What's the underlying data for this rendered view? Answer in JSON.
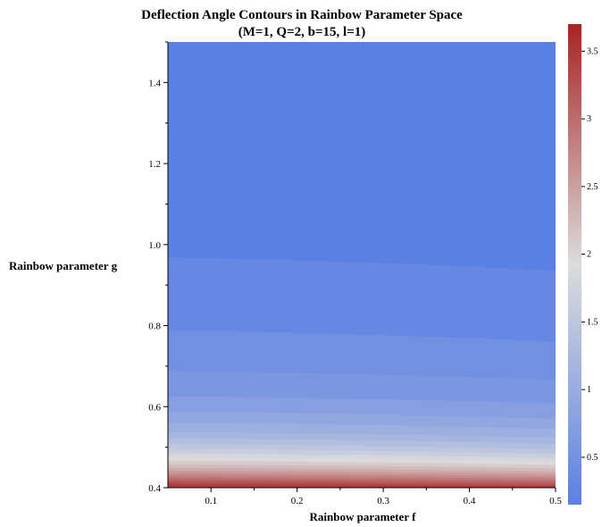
{
  "chart_data": {
    "type": "heatmap",
    "title": "Deflection Angle Contours in Rainbow Parameter Space",
    "subtitle": "(M=1, Q=2, b=15, l=1)",
    "xlabel": "Rainbow parameter f",
    "ylabel": "Rainbow parameter g",
    "xlim": [
      0.05,
      0.5
    ],
    "ylim": [
      0.4,
      1.5
    ],
    "xticks": [
      0.1,
      0.2,
      0.3,
      0.4,
      0.5
    ],
    "xtick_labels": [
      "0.1",
      "0.2",
      "0.3",
      "0.4",
      "0.5"
    ],
    "yticks": [
      0.4,
      0.6,
      0.8,
      1.0,
      1.2,
      1.4
    ],
    "ytick_labels": [
      "0.4",
      "0.6",
      "0.8",
      "1.0",
      "1.2",
      "1.4"
    ],
    "colorbar": {
      "range": [
        0.15,
        3.7
      ],
      "ticks": [
        0.5,
        1,
        1.5,
        2,
        2.5,
        3,
        3.5
      ],
      "tick_labels": [
        "0.5",
        "1",
        "1.5",
        "2",
        "2.5",
        "3",
        "3.5"
      ],
      "colormap": "coolwarm",
      "color_low": "#5b80e3",
      "color_mid": "#dcdcdc",
      "color_high": "#a82324"
    },
    "contour_lines": [
      {
        "level": 0.3,
        "g_at_f": [
          [
            0.05,
            0.968
          ],
          [
            0.5,
            0.935
          ]
        ]
      },
      {
        "level": 0.45,
        "g_at_f": [
          [
            0.05,
            0.788
          ],
          [
            0.5,
            0.76
          ]
        ]
      },
      {
        "level": 0.6,
        "g_at_f": [
          [
            0.05,
            0.688
          ],
          [
            0.5,
            0.666
          ]
        ]
      },
      {
        "level": 0.75,
        "g_at_f": [
          [
            0.05,
            0.625
          ],
          [
            0.5,
            0.608
          ]
        ]
      },
      {
        "level": 0.9,
        "g_at_f": [
          [
            0.05,
            0.588
          ],
          [
            0.5,
            0.57
          ]
        ]
      },
      {
        "level": 1.05,
        "g_at_f": [
          [
            0.05,
            0.56
          ],
          [
            0.5,
            0.545
          ]
        ]
      },
      {
        "level": 1.2,
        "g_at_f": [
          [
            0.05,
            0.537
          ],
          [
            0.5,
            0.524
          ]
        ]
      },
      {
        "level": 1.35,
        "g_at_f": [
          [
            0.05,
            0.522
          ],
          [
            0.5,
            0.508
          ]
        ]
      },
      {
        "level": 1.5,
        "g_at_f": [
          [
            0.05,
            0.508
          ],
          [
            0.5,
            0.494
          ]
        ]
      },
      {
        "level": 1.65,
        "g_at_f": [
          [
            0.05,
            0.496
          ],
          [
            0.5,
            0.483
          ]
        ]
      },
      {
        "level": 1.8,
        "g_at_f": [
          [
            0.05,
            0.485
          ],
          [
            0.5,
            0.473
          ]
        ]
      },
      {
        "level": 1.95,
        "g_at_f": [
          [
            0.05,
            0.476
          ],
          [
            0.5,
            0.465
          ]
        ]
      },
      {
        "level": 2.1,
        "g_at_f": [
          [
            0.05,
            0.466
          ],
          [
            0.5,
            0.456
          ]
        ]
      },
      {
        "level": 2.25,
        "g_at_f": [
          [
            0.05,
            0.457
          ],
          [
            0.5,
            0.448
          ]
        ]
      },
      {
        "level": 2.4,
        "g_at_f": [
          [
            0.05,
            0.449
          ],
          [
            0.5,
            0.44
          ]
        ]
      },
      {
        "level": 2.55,
        "g_at_f": [
          [
            0.05,
            0.442
          ],
          [
            0.5,
            0.434
          ]
        ]
      },
      {
        "level": 2.7,
        "g_at_f": [
          [
            0.05,
            0.436
          ],
          [
            0.5,
            0.428
          ]
        ]
      },
      {
        "level": 2.85,
        "g_at_f": [
          [
            0.05,
            0.43
          ],
          [
            0.5,
            0.423
          ]
        ]
      },
      {
        "level": 3.0,
        "g_at_f": [
          [
            0.05,
            0.424
          ],
          [
            0.5,
            0.418
          ]
        ]
      },
      {
        "level": 3.15,
        "g_at_f": [
          [
            0.05,
            0.419
          ],
          [
            0.5,
            0.413
          ]
        ]
      },
      {
        "level": 3.3,
        "g_at_f": [
          [
            0.05,
            0.414
          ],
          [
            0.5,
            0.408
          ]
        ]
      },
      {
        "level": 3.45,
        "g_at_f": [
          [
            0.05,
            0.409
          ],
          [
            0.5,
            0.404
          ]
        ]
      }
    ]
  }
}
